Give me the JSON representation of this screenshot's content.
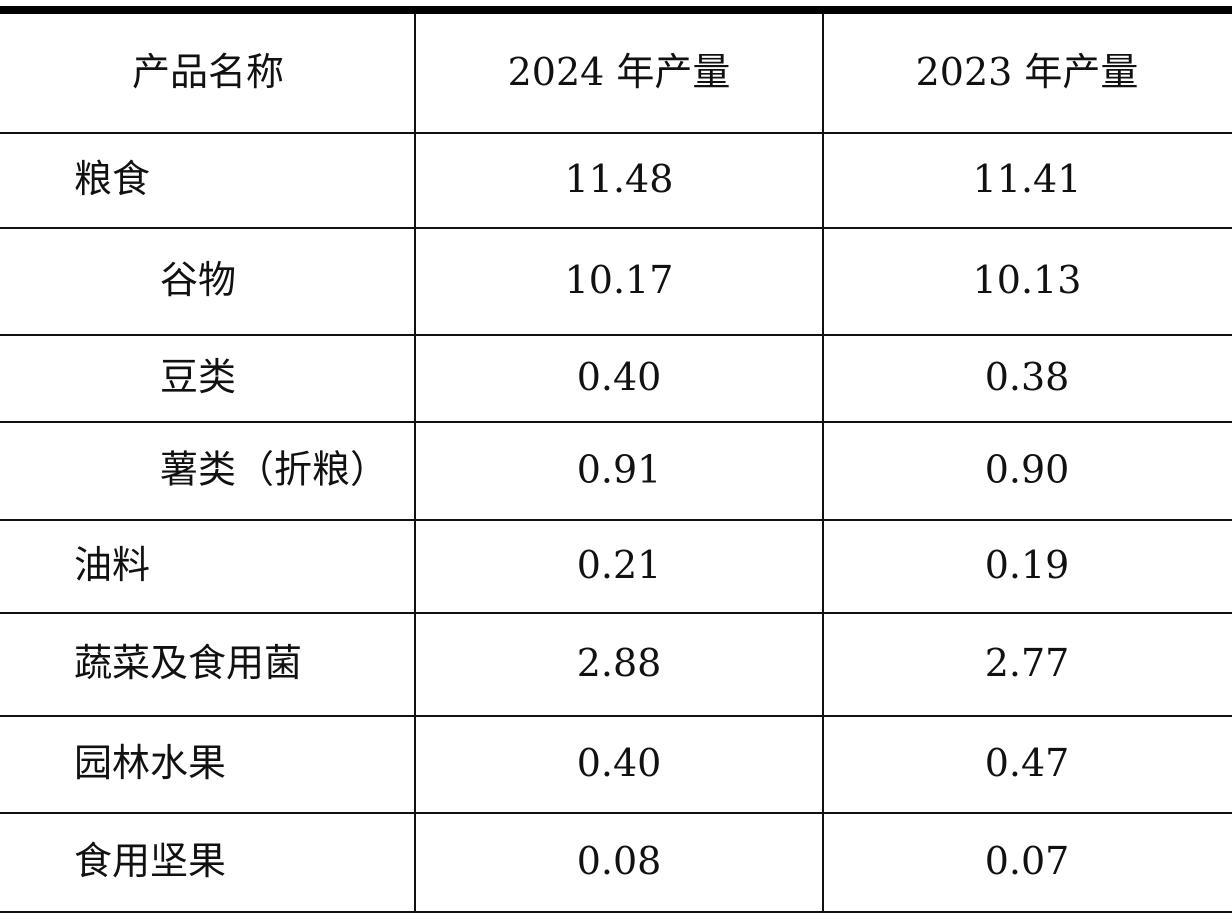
{
  "table": {
    "header": [
      "产品名称",
      "2024 年产量",
      "2023 年产量"
    ],
    "rows": [
      [
        "粮食",
        "11.48",
        "11.41"
      ],
      [
        "谷物",
        "10.17",
        "10.13"
      ],
      [
        "豆类",
        "0.40",
        "0.38"
      ],
      [
        "薯类（折粮）",
        "0.91",
        "0.90"
      ],
      [
        "油料",
        "0.21",
        "0.19"
      ],
      [
        "蔬菜及食用菌",
        "2.88",
        "2.77"
      ],
      [
        "园林水果",
        "0.40",
        "0.47"
      ],
      [
        "食用坚果",
        "0.08",
        "0.07"
      ]
    ]
  }
}
